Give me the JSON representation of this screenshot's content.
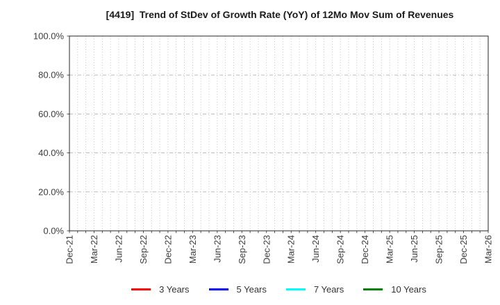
{
  "chart_data": {
    "type": "line",
    "title": "[4419]  Trend of StDev of Growth Rate (YoY) of 12Mo Mov Sum of Revenues",
    "x_tick_labels": [
      "Dec-21",
      "Mar-22",
      "Jun-22",
      "Sep-22",
      "Dec-22",
      "Mar-23",
      "Jun-23",
      "Sep-23",
      "Dec-23",
      "Mar-24",
      "Jun-24",
      "Sep-24",
      "Dec-24",
      "Mar-25",
      "Jun-25",
      "Sep-25",
      "Dec-25",
      "Mar-26"
    ],
    "minor_x_divisions_per_major": 3,
    "y_tick_values": [
      0,
      20,
      40,
      60,
      80,
      100
    ],
    "y_tick_labels": [
      "0.0%",
      "20.0%",
      "40.0%",
      "60.0%",
      "80.0%",
      "100.0%"
    ],
    "ylim": [
      0,
      100
    ],
    "grid": {
      "vertical": "dotted (monthly)",
      "horizontal": "dash-dot (every 20%)",
      "color": "#b3b3b3"
    },
    "frame_color": "#262626",
    "tick_label_color": "#3c3c3c",
    "legend_position": "bottom-center",
    "series": [
      {
        "name": "3 Years",
        "color": "#ff0000",
        "values": []
      },
      {
        "name": "5 Years",
        "color": "#0000ff",
        "values": []
      },
      {
        "name": "7 Years",
        "color": "#00ffff",
        "values": []
      },
      {
        "name": "10 Years",
        "color": "#008000",
        "values": []
      }
    ]
  }
}
